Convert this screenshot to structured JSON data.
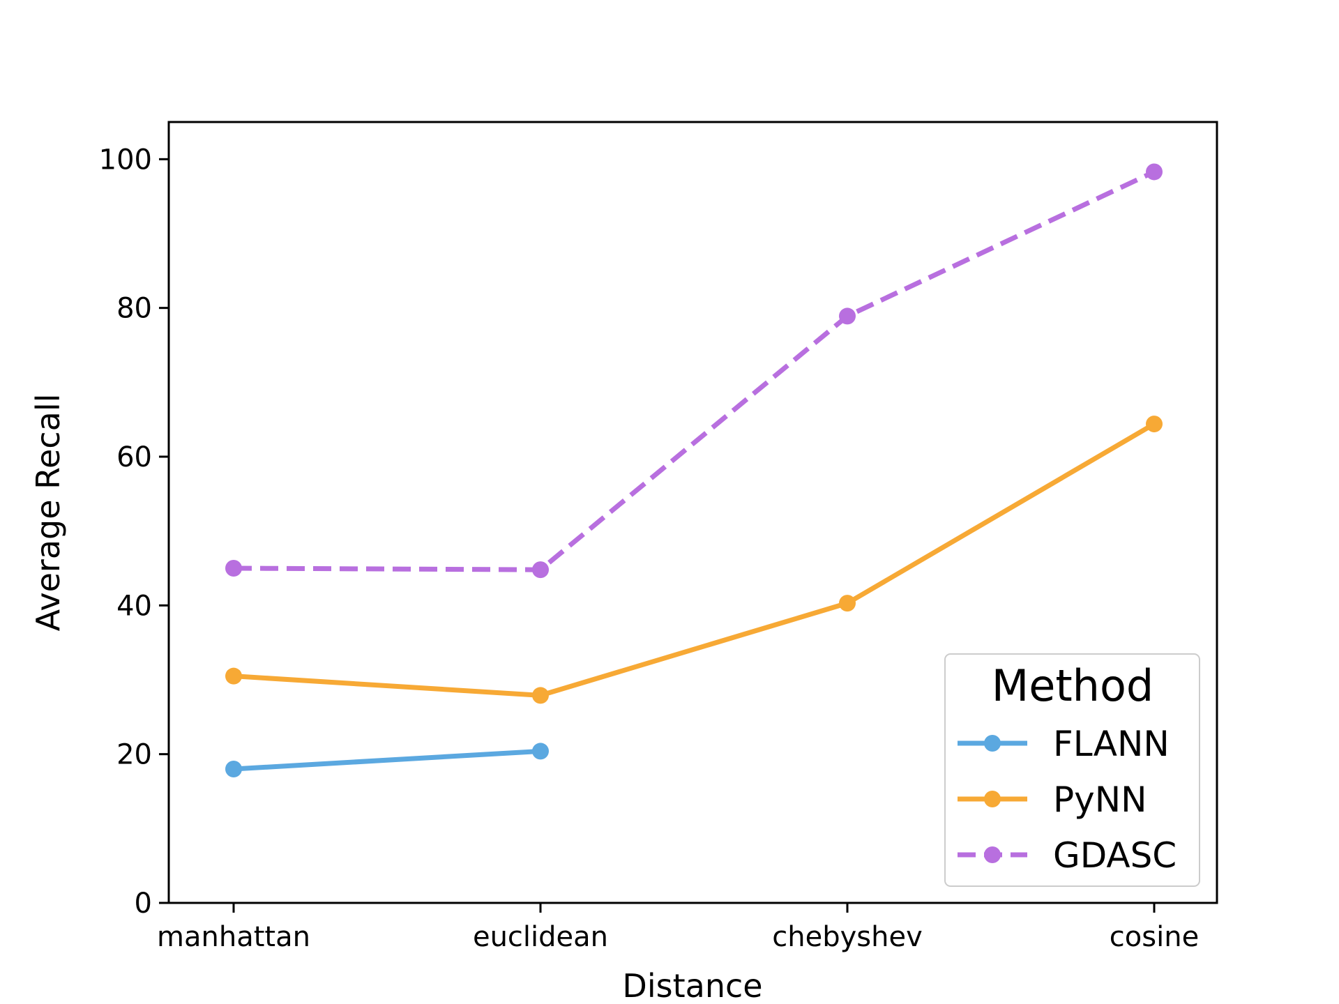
{
  "chart_data": {
    "type": "line",
    "title": "",
    "xlabel": "Distance",
    "ylabel": "Average Recall",
    "categories": [
      "manhattan",
      "euclidean",
      "chebyshev",
      "cosine"
    ],
    "ylim": [
      0,
      105
    ],
    "yticks": [
      0,
      20,
      40,
      60,
      80,
      100
    ],
    "grid": false,
    "legend": {
      "title": "Method",
      "position": "lower right"
    },
    "series": [
      {
        "name": "FLANN",
        "values": [
          18.0,
          20.4,
          null,
          null
        ],
        "color": "#5ba8e0",
        "style": "solid",
        "marker": "circle"
      },
      {
        "name": "PyNN",
        "values": [
          30.5,
          27.9,
          40.3,
          64.4
        ],
        "color": "#f7a935",
        "style": "solid",
        "marker": "circle"
      },
      {
        "name": "GDASC",
        "values": [
          45.0,
          44.8,
          78.9,
          98.3
        ],
        "color": "#b86fdf",
        "style": "dashed",
        "marker": "circle"
      }
    ]
  }
}
